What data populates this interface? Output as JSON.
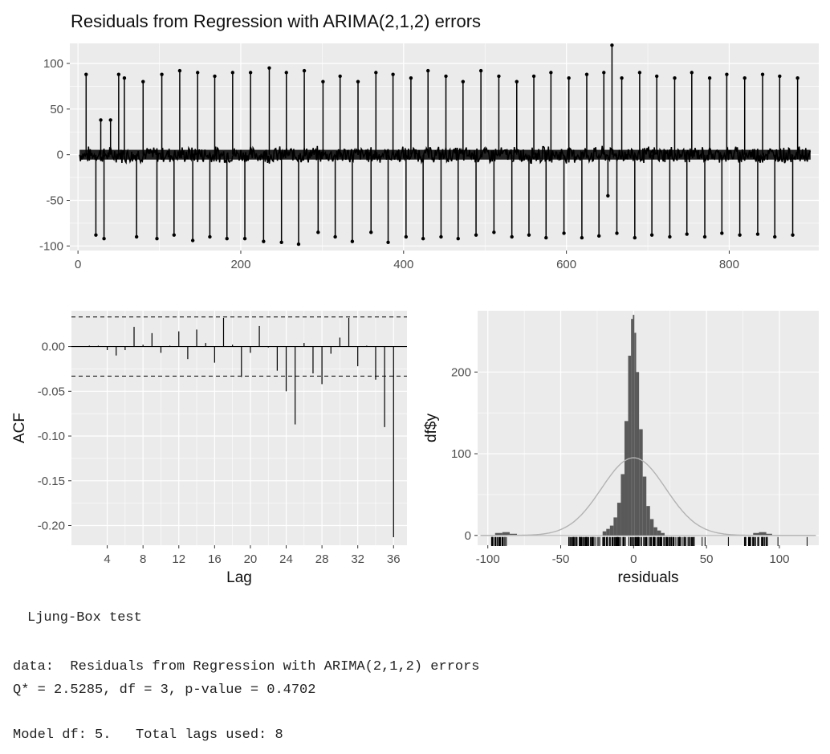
{
  "title": "Residuals from Regression with ARIMA(2,1,2) errors",
  "colors": {
    "panel": "#ebebeb",
    "grid": "#ffffff",
    "ink": "#000000",
    "density": "#b3b3b3",
    "hist": "#595959",
    "ticklabel": "#4d4d4d"
  },
  "chart_data": [
    {
      "type": "line",
      "xlim": [
        -10,
        910
      ],
      "ylim": [
        -105,
        122
      ],
      "x_ticks": [
        0,
        200,
        400,
        600,
        800
      ],
      "y_ticks": [
        -100,
        -50,
        0,
        50,
        100
      ],
      "grid": true,
      "spike_points": [
        {
          "x": 10,
          "y": 88
        },
        {
          "x": 22,
          "y": -88
        },
        {
          "x": 28,
          "y": 38
        },
        {
          "x": 32,
          "y": -92
        },
        {
          "x": 40,
          "y": 38
        },
        {
          "x": 50,
          "y": 88
        },
        {
          "x": 57,
          "y": 84
        },
        {
          "x": 72,
          "y": -90
        },
        {
          "x": 80,
          "y": 80
        },
        {
          "x": 97,
          "y": -92
        },
        {
          "x": 103,
          "y": 88
        },
        {
          "x": 118,
          "y": -88
        },
        {
          "x": 125,
          "y": 92
        },
        {
          "x": 141,
          "y": -94
        },
        {
          "x": 147,
          "y": 90
        },
        {
          "x": 162,
          "y": -90
        },
        {
          "x": 168,
          "y": 86
        },
        {
          "x": 183,
          "y": -92
        },
        {
          "x": 190,
          "y": 90
        },
        {
          "x": 205,
          "y": -92
        },
        {
          "x": 212,
          "y": 90
        },
        {
          "x": 228,
          "y": -95
        },
        {
          "x": 235,
          "y": 95
        },
        {
          "x": 250,
          "y": -96
        },
        {
          "x": 256,
          "y": 90
        },
        {
          "x": 271,
          "y": -98
        },
        {
          "x": 278,
          "y": 92
        },
        {
          "x": 295,
          "y": -85
        },
        {
          "x": 301,
          "y": 80
        },
        {
          "x": 316,
          "y": -90
        },
        {
          "x": 322,
          "y": 86
        },
        {
          "x": 337,
          "y": -95
        },
        {
          "x": 344,
          "y": 80
        },
        {
          "x": 360,
          "y": -85
        },
        {
          "x": 366,
          "y": 90
        },
        {
          "x": 381,
          "y": -96
        },
        {
          "x": 387,
          "y": 88
        },
        {
          "x": 403,
          "y": -90
        },
        {
          "x": 409,
          "y": 84
        },
        {
          "x": 424,
          "y": -92
        },
        {
          "x": 430,
          "y": 92
        },
        {
          "x": 446,
          "y": -90
        },
        {
          "x": 452,
          "y": 86
        },
        {
          "x": 467,
          "y": -92
        },
        {
          "x": 473,
          "y": 80
        },
        {
          "x": 489,
          "y": -88
        },
        {
          "x": 495,
          "y": 92
        },
        {
          "x": 511,
          "y": -85
        },
        {
          "x": 517,
          "y": 86
        },
        {
          "x": 533,
          "y": -90
        },
        {
          "x": 539,
          "y": 80
        },
        {
          "x": 554,
          "y": -88
        },
        {
          "x": 560,
          "y": 86
        },
        {
          "x": 575,
          "y": -91
        },
        {
          "x": 581,
          "y": 90
        },
        {
          "x": 597,
          "y": -86
        },
        {
          "x": 603,
          "y": 84
        },
        {
          "x": 619,
          "y": -91
        },
        {
          "x": 625,
          "y": 88
        },
        {
          "x": 640,
          "y": -89
        },
        {
          "x": 646,
          "y": 90
        },
        {
          "x": 651,
          "y": -45
        },
        {
          "x": 656,
          "y": 120
        },
        {
          "x": 662,
          "y": -86
        },
        {
          "x": 668,
          "y": 84
        },
        {
          "x": 684,
          "y": -91
        },
        {
          "x": 690,
          "y": 90
        },
        {
          "x": 705,
          "y": -88
        },
        {
          "x": 711,
          "y": 86
        },
        {
          "x": 727,
          "y": -90
        },
        {
          "x": 733,
          "y": 84
        },
        {
          "x": 748,
          "y": -87
        },
        {
          "x": 754,
          "y": 90
        },
        {
          "x": 770,
          "y": -90
        },
        {
          "x": 776,
          "y": 84
        },
        {
          "x": 791,
          "y": -86
        },
        {
          "x": 797,
          "y": 88
        },
        {
          "x": 813,
          "y": -88
        },
        {
          "x": 819,
          "y": 84
        },
        {
          "x": 835,
          "y": -87
        },
        {
          "x": 841,
          "y": 88
        },
        {
          "x": 856,
          "y": -90
        },
        {
          "x": 862,
          "y": 86
        },
        {
          "x": 878,
          "y": -88
        },
        {
          "x": 884,
          "y": 84
        }
      ],
      "noise_band": {
        "x_range": [
          2,
          900
        ],
        "half_width": 8
      }
    },
    {
      "type": "bar",
      "xlabel": "Lag",
      "ylabel": "ACF",
      "xlim": [
        0,
        37.5
      ],
      "ylim": [
        -0.222,
        0.04
      ],
      "x_ticks": [
        4,
        8,
        12,
        16,
        20,
        24,
        28,
        32,
        36
      ],
      "y_ticks": [
        -0.2,
        -0.15,
        -0.1,
        -0.05,
        0.0
      ],
      "y_tick_labels": [
        "-0.20",
        "-0.15",
        "-0.10",
        "-0.05",
        "0.00"
      ],
      "conf_limit": 0.033,
      "lags": [
        1,
        2,
        3,
        4,
        5,
        6,
        7,
        8,
        9,
        10,
        11,
        12,
        13,
        14,
        15,
        16,
        17,
        18,
        19,
        20,
        21,
        22,
        23,
        24,
        25,
        26,
        27,
        28,
        29,
        30,
        31,
        32,
        33,
        34,
        35,
        36
      ],
      "values": [
        0.0,
        0.001,
        0.001,
        -0.004,
        -0.01,
        -0.004,
        0.022,
        0.002,
        0.015,
        -0.007,
        0.001,
        0.017,
        -0.014,
        0.019,
        0.004,
        -0.018,
        0.032,
        0.002,
        -0.034,
        -0.007,
        0.023,
        -0.001,
        -0.027,
        -0.05,
        -0.087,
        0.004,
        -0.03,
        -0.042,
        -0.008,
        0.01,
        0.032,
        -0.022,
        0.001,
        -0.037,
        -0.09,
        -0.213
      ]
    },
    {
      "type": "histogram",
      "xlabel": "residuals",
      "ylabel": "df$y",
      "xlim": [
        -107,
        127
      ],
      "ylim": [
        -12,
        275
      ],
      "x_ticks": [
        -100,
        -50,
        0,
        50,
        100
      ],
      "y_ticks": [
        0,
        100,
        200
      ],
      "bin_centers": [
        -20,
        -17.5,
        -15,
        -12.5,
        -10,
        -7.5,
        -5,
        -2.5,
        -1,
        0,
        1,
        2.5,
        5,
        7.5,
        10,
        12.5,
        15,
        17.5,
        20
      ],
      "counts": [
        5,
        8,
        12,
        22,
        40,
        75,
        140,
        220,
        265,
        270,
        248,
        200,
        130,
        72,
        36,
        20,
        10,
        6,
        3
      ],
      "density_curve": {
        "mean": 0,
        "sd": 22,
        "peak": 95
      },
      "rug_clusters": [
        {
          "from": -98,
          "to": -87
        },
        {
          "from": -45,
          "to": 42
        },
        {
          "from": 76,
          "to": 92
        }
      ],
      "rug_extra": [
        -37,
        -28,
        47,
        49,
        65,
        99,
        119
      ]
    }
  ],
  "ljung_box": {
    "heading": "Ljung-Box test",
    "data_line": "data:  Residuals from Regression with ARIMA(2,1,2) errors",
    "stat_line": "Q* = 2.5285, df = 3, p-value = 0.4702",
    "model_line": "Model df: 5.   Total lags used: 8"
  }
}
